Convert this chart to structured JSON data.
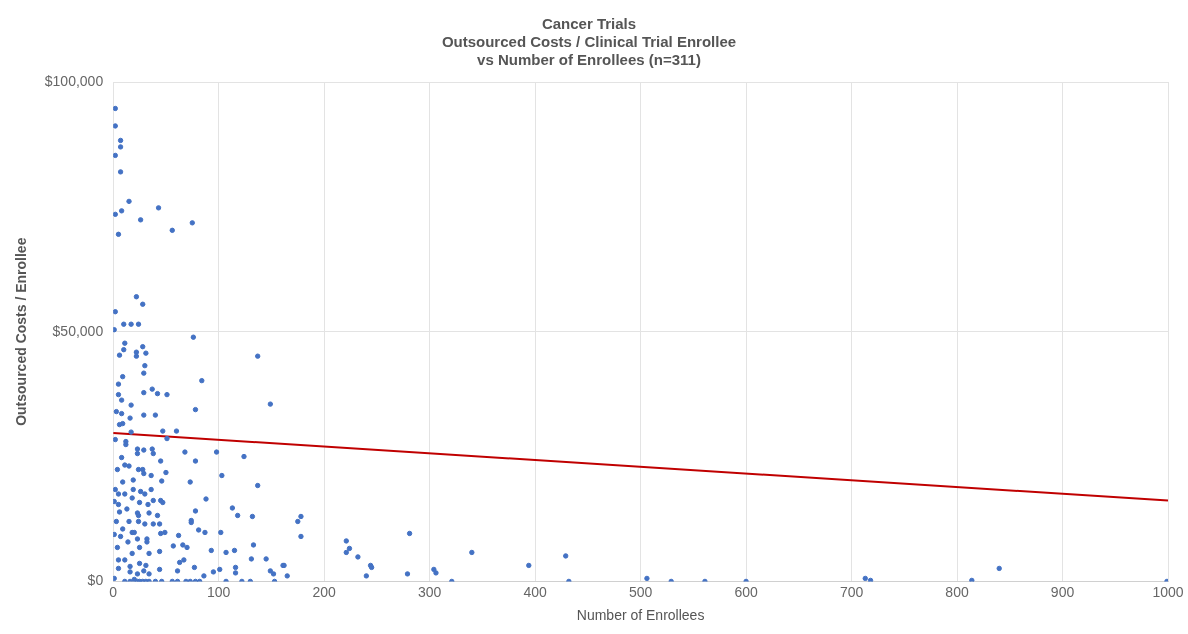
{
  "chart_data": {
    "type": "scatter",
    "title": "Cancer Trials",
    "subtitle": "Outsourced Costs / Clinical Trial Enrollee\nvs Number of Enrollees (n=311)",
    "xlabel": "Number of Enrollees",
    "ylabel": "Outsourced Costs / Enrollee",
    "xlim": [
      0,
      1000
    ],
    "xticks": [
      0,
      100,
      200,
      300,
      400,
      500,
      600,
      700,
      800,
      900,
      1000
    ],
    "ylim": [
      0,
      100000
    ],
    "yticks": [
      {
        "value": 0,
        "label": "$0"
      },
      {
        "value": 50000,
        "label": "$50,000"
      },
      {
        "value": 100000,
        "label": "$100,000"
      }
    ],
    "grid": true,
    "legend": false,
    "marker": "circle",
    "series": [
      {
        "type": "scatter",
        "color": "#4472c4",
        "x": [
          2,
          2,
          7,
          7,
          2,
          7,
          15,
          43,
          2,
          8,
          26,
          56,
          75,
          5,
          22,
          28,
          2,
          10,
          17,
          24,
          1,
          76,
          137,
          11,
          10,
          6,
          22,
          22,
          28,
          31,
          30,
          29,
          9,
          84,
          5,
          37,
          29,
          42,
          51,
          5,
          8,
          149,
          78,
          17,
          3,
          8,
          29,
          40,
          16,
          9,
          6,
          17,
          47,
          60,
          51,
          2,
          12,
          12,
          23,
          29,
          37,
          23,
          38,
          68,
          98,
          78,
          45,
          8,
          124,
          11,
          15,
          4,
          24,
          28,
          50,
          29,
          103,
          36,
          9,
          19,
          73,
          46,
          137,
          2,
          19,
          26,
          36,
          5,
          11,
          30,
          18,
          88,
          38,
          45,
          1,
          5,
          25,
          33,
          47,
          13,
          113,
          6,
          23,
          34,
          42,
          118,
          78,
          175,
          178,
          178,
          24,
          132,
          3,
          15,
          24,
          74,
          74,
          44,
          30,
          38,
          9,
          18,
          81,
          87,
          102,
          1,
          7,
          20,
          32,
          45,
          49,
          62,
          23,
          14,
          4,
          32,
          66,
          70,
          57,
          133,
          25,
          93,
          107,
          115,
          44,
          18,
          34,
          5,
          11,
          25,
          63,
          67,
          131,
          145,
          161,
          16,
          31,
          116,
          5,
          44,
          149,
          16,
          29,
          77,
          95,
          101,
          23,
          34,
          61,
          152,
          116,
          1,
          11,
          16,
          20,
          23,
          25,
          28,
          31,
          34,
          40,
          46,
          56,
          61,
          69,
          73,
          78,
          82,
          86,
          107,
          122,
          130,
          153,
          162,
          165,
          221,
          224,
          221,
          232,
          244,
          245,
          240,
          281,
          279,
          304,
          306,
          321,
          340,
          394,
          429,
          432,
          506,
          529,
          561,
          600,
          713,
          718,
          814,
          840,
          999
        ],
        "values": [
          94700,
          91200,
          88300,
          87000,
          85300,
          82000,
          76100,
          74800,
          73500,
          74200,
          72400,
          70300,
          71800,
          69500,
          57000,
          55500,
          54000,
          51500,
          51500,
          51500,
          50400,
          48900,
          45100,
          47700,
          46400,
          45300,
          45900,
          45100,
          47000,
          45700,
          43200,
          41700,
          41000,
          40200,
          39500,
          38500,
          37800,
          37600,
          37400,
          37400,
          36300,
          35500,
          34400,
          35300,
          34000,
          33600,
          33300,
          33300,
          32700,
          31600,
          31400,
          29900,
          30100,
          30100,
          28600,
          28400,
          28000,
          27400,
          26500,
          26300,
          26500,
          25600,
          25600,
          25900,
          25900,
          24100,
          24100,
          24800,
          25000,
          23300,
          23100,
          22400,
          22400,
          22400,
          21800,
          21600,
          21200,
          21200,
          19900,
          20300,
          19900,
          20100,
          19200,
          18400,
          18400,
          18000,
          18400,
          17500,
          17500,
          17500,
          16700,
          16500,
          16200,
          16200,
          16000,
          15400,
          15800,
          15400,
          15800,
          14500,
          14700,
          13900,
          13700,
          13700,
          13200,
          13200,
          14100,
          12000,
          13000,
          9000,
          13200,
          13000,
          12000,
          12000,
          12000,
          12200,
          11800,
          11500,
          11500,
          11500,
          10500,
          9800,
          10300,
          9800,
          9800,
          9400,
          9000,
          9800,
          8500,
          9600,
          9800,
          9200,
          8500,
          7900,
          6800,
          7900,
          7300,
          6800,
          7100,
          7300,
          6800,
          6200,
          5800,
          6200,
          6000,
          5600,
          5600,
          4300,
          4300,
          3600,
          3800,
          4300,
          4500,
          4500,
          3200,
          3000,
          3200,
          2800,
          2600,
          2400,
          2100,
          1900,
          2100,
          2800,
          1900,
          2400,
          1500,
          1500,
          2100,
          1500,
          1700,
          600,
          0,
          0,
          400,
          0,
          0,
          0,
          0,
          0,
          0,
          0,
          0,
          0,
          0,
          0,
          0,
          0,
          1100,
          0,
          0,
          0,
          0,
          3200,
          1100,
          8100,
          6600,
          5800,
          4900,
          3200,
          2800,
          1100,
          9600,
          1500,
          2400,
          1700,
          0,
          5800,
          3200,
          5100,
          0,
          600,
          0,
          0,
          0,
          600,
          200,
          200,
          2600,
          0
        ]
      },
      {
        "type": "line",
        "color": "#c00000",
        "marker": "none",
        "x": [
          0,
          1000
        ],
        "values": [
          29700,
          16200
        ]
      }
    ]
  }
}
